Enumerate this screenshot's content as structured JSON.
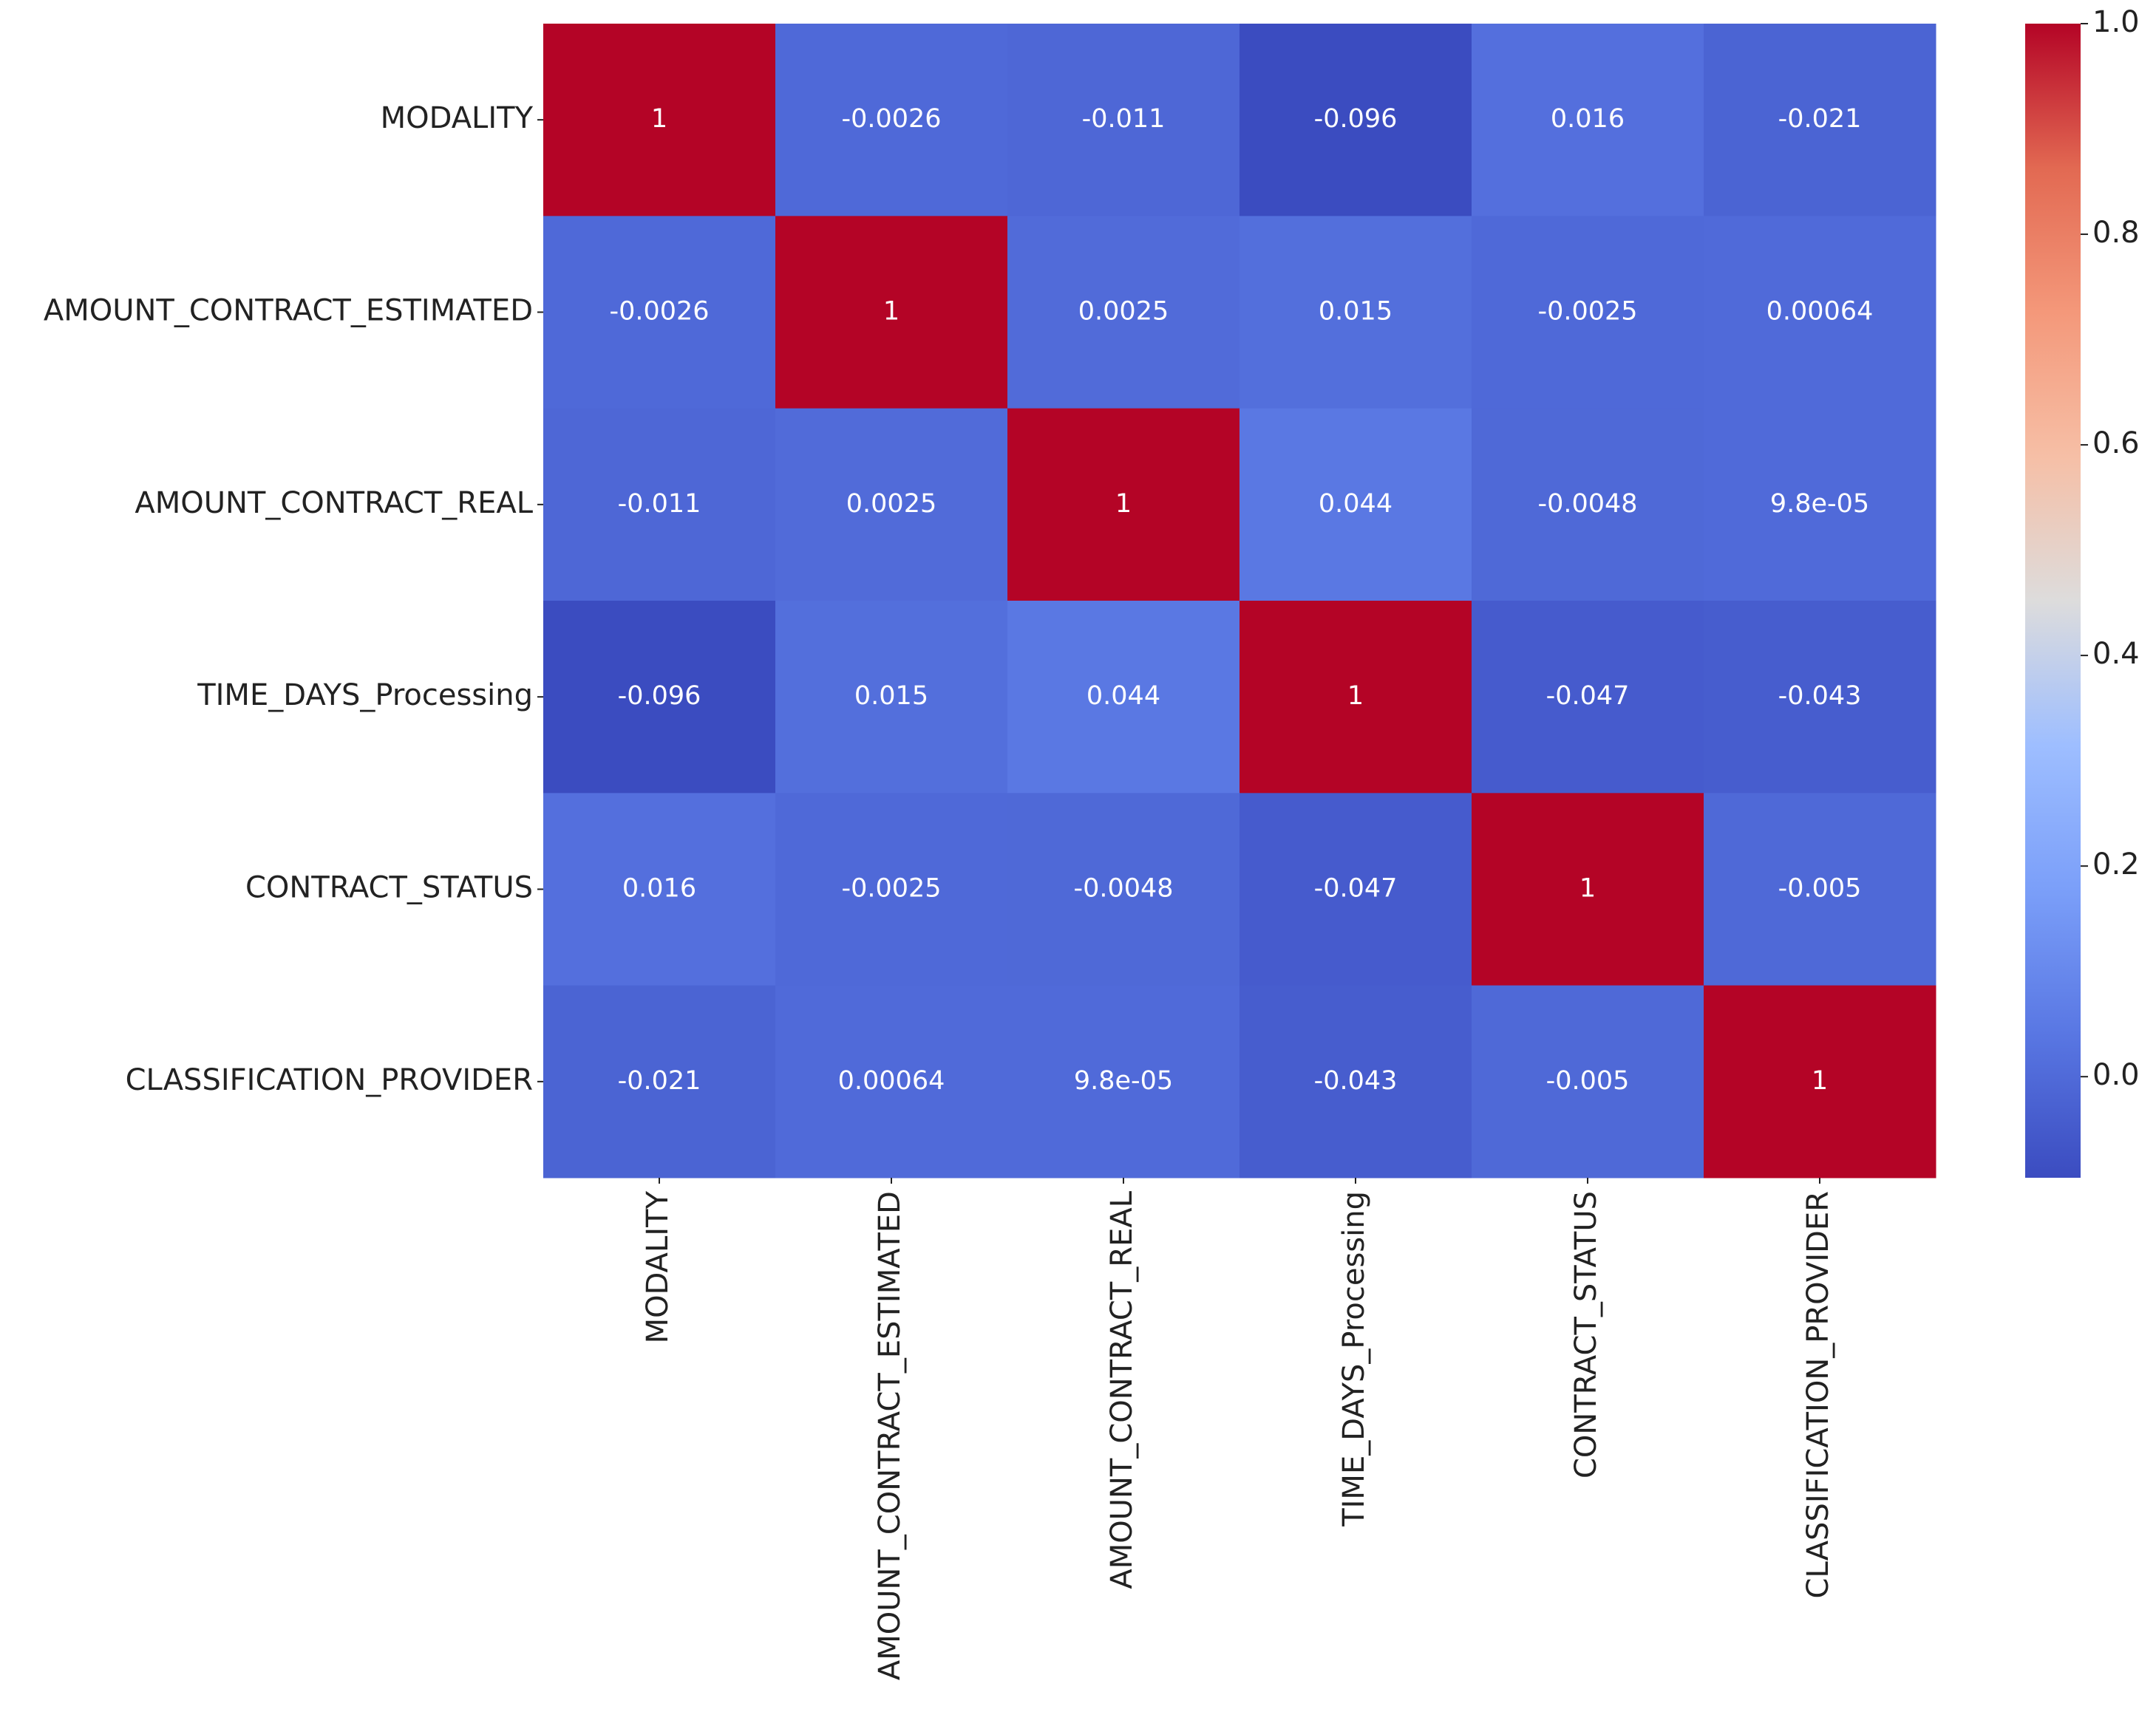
{
  "chart_data": {
    "type": "heatmap",
    "categories": [
      "MODALITY",
      "AMOUNT_CONTRACT_ESTIMATED",
      "AMOUNT_CONTRACT_REAL",
      "TIME_DAYS_Processing",
      "CONTRACT_STATUS",
      "CLASSIFICATION_PROVIDER"
    ],
    "values": [
      [
        1,
        -0.0026,
        -0.011,
        -0.096,
        0.016,
        -0.021
      ],
      [
        -0.0026,
        1,
        0.0025,
        0.015,
        -0.0025,
        0.00064
      ],
      [
        -0.011,
        0.0025,
        1,
        0.044,
        -0.0048,
        9.8e-05
      ],
      [
        -0.096,
        0.015,
        0.044,
        1,
        -0.047,
        -0.043
      ],
      [
        0.016,
        -0.0025,
        -0.0048,
        -0.047,
        1,
        -0.005
      ],
      [
        -0.021,
        0.00064,
        9.8e-05,
        -0.043,
        -0.005,
        1
      ]
    ],
    "value_labels": [
      [
        "1",
        "-0.0026",
        "-0.011",
        "-0.096",
        "0.016",
        "-0.021"
      ],
      [
        "-0.0026",
        "1",
        "0.0025",
        "0.015",
        "-0.0025",
        "0.00064"
      ],
      [
        "-0.011",
        "0.0025",
        "1",
        "0.044",
        "-0.0048",
        "9.8e-05"
      ],
      [
        "-0.096",
        "0.015",
        "0.044",
        "1",
        "-0.047",
        "-0.043"
      ],
      [
        "0.016",
        "-0.0025",
        "-0.0048",
        "-0.047",
        "1",
        "-0.005"
      ],
      [
        "-0.021",
        "0.00064",
        "9.8e-05",
        "-0.043",
        "-0.005",
        "1"
      ]
    ],
    "colormap": [
      "#3b4cc0",
      "#5977e3",
      "#7b9ff9",
      "#9ebeff",
      "#dddcdc",
      "#f6bfa6",
      "#f4987a",
      "#e26952",
      "#b40426"
    ],
    "clim": [
      -0.096,
      1.0
    ],
    "cticks": [
      {
        "value": 0.0,
        "label": "0.0"
      },
      0.2,
      0.4,
      0.6,
      0.8,
      {
        "value": 1.0,
        "label": "1.0"
      }
    ]
  }
}
